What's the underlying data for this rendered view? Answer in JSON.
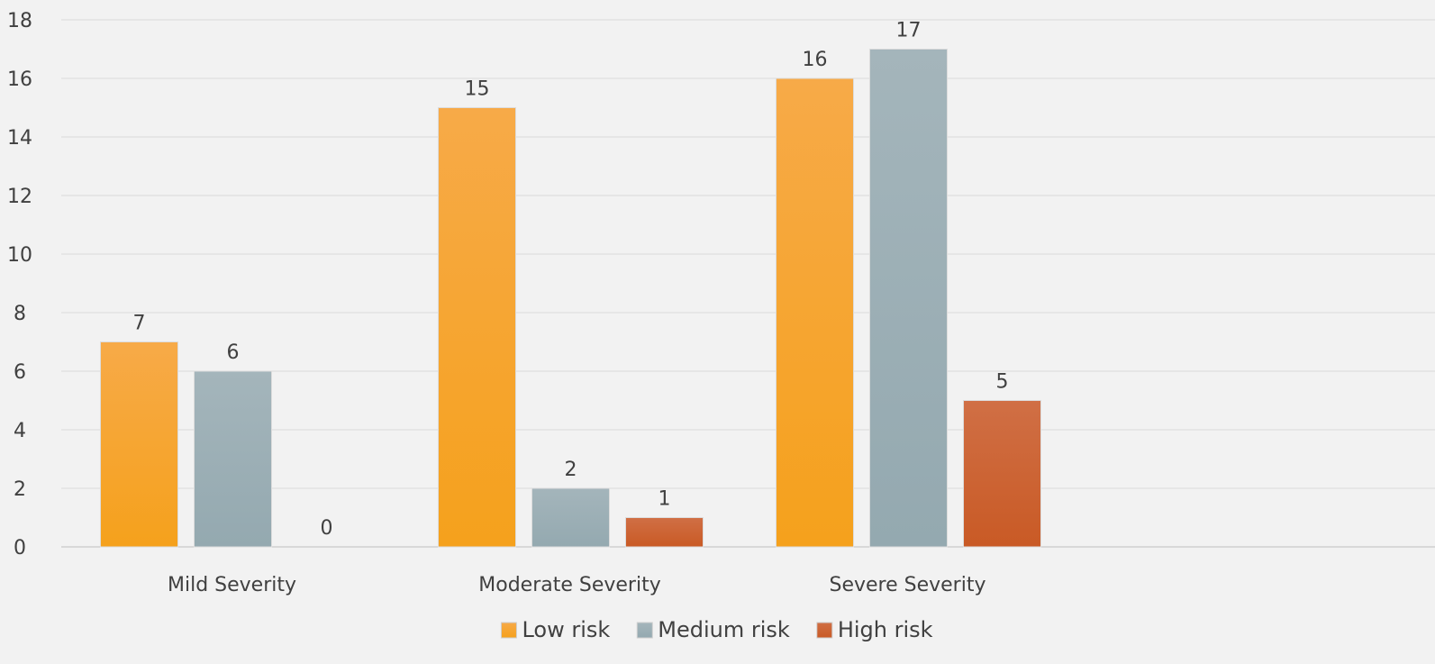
{
  "chart_data": {
    "type": "bar",
    "categories": [
      "Mild Severity",
      "Moderate Severity",
      "Severe Severity"
    ],
    "series": [
      {
        "name": "Low risk",
        "values": [
          7,
          15,
          16
        ],
        "color": "#f5a11c",
        "color_top": "#f7aa48"
      },
      {
        "name": "Medium risk",
        "values": [
          6,
          2,
          17
        ],
        "color": "#94a9b0",
        "color_top": "#a4b5bb"
      },
      {
        "name": "High risk",
        "values": [
          0,
          1,
          5
        ],
        "color": "#c95a25",
        "color_top": "#d06f45"
      }
    ],
    "ylim": [
      0,
      18
    ],
    "yticks": [
      "0",
      "2",
      "4",
      "6",
      "8",
      "10",
      "12",
      "14",
      "16",
      "18"
    ],
    "grid": true,
    "legend": "bottom",
    "data_labels": true,
    "title": "",
    "xlabel": "",
    "ylabel": ""
  }
}
